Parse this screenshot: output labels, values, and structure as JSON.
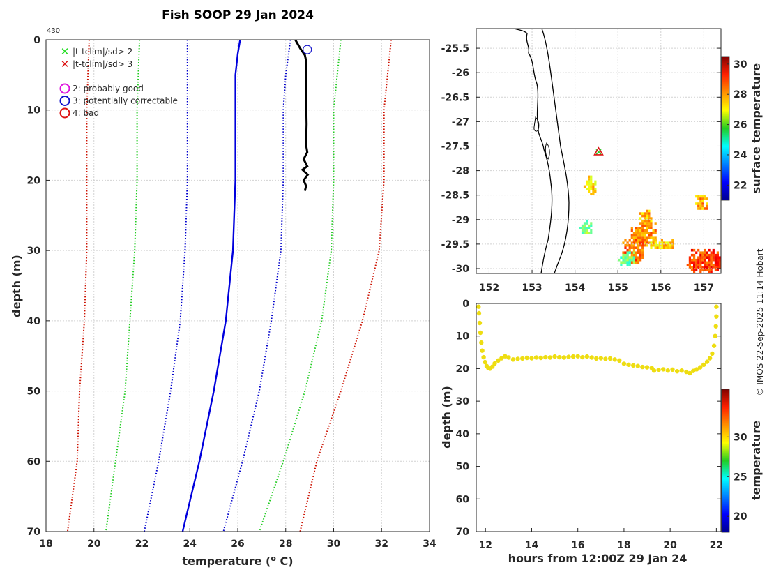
{
  "figure": {
    "title": "Fish SOOP 29 Jan 2024",
    "cruise_id": "430",
    "credit": "© IMOS 22-Sep-2025 11:14 Hobart"
  },
  "colors": {
    "climatology_mean": "#0000dd",
    "sd1": "#0000cc",
    "sd2": "#22cc22",
    "sd3": "#cc1100",
    "profile": "#000000",
    "marker": "#1a1acc"
  },
  "chart_data": [
    {
      "type": "line",
      "id": "profile",
      "title": "Fish SOOP 29 Jan 2024",
      "xlabel": "temperature (o C)",
      "xlabel_main": "temperature (",
      "xlabel_sup": "o",
      "xlabel_tail": " C)",
      "ylabel": "depth (m)",
      "xlim": [
        18,
        34
      ],
      "ylim": [
        70,
        0
      ],
      "xticks": [
        18,
        20,
        22,
        24,
        26,
        28,
        30,
        32,
        34
      ],
      "yticks": [
        0,
        10,
        20,
        30,
        40,
        50,
        60,
        70
      ],
      "grid": true,
      "legend": {
        "location": "top-left",
        "flag_entries": [
          {
            "symbol": "x",
            "color": "#22dd22",
            "label": "|t-tclim|/sd> 2"
          },
          {
            "symbol": "x",
            "color": "#dd1111",
            "label": "|t-tclim|/sd> 3"
          }
        ],
        "qc_entries": [
          {
            "symbol": "o",
            "color": "#dd11dd",
            "label": "2: probably good"
          },
          {
            "symbol": "o",
            "color": "#1111cc",
            "label": "3: potentially correctable"
          },
          {
            "symbol": "o",
            "color": "#dd1111",
            "label": "4: bad"
          }
        ]
      },
      "series": [
        {
          "name": "climatology mean",
          "style": "solid",
          "color": "#0000dd",
          "points": [
            [
              26.1,
              0
            ],
            [
              26.0,
              2
            ],
            [
              25.9,
              5
            ],
            [
              25.9,
              10
            ],
            [
              25.9,
              20
            ],
            [
              25.8,
              30
            ],
            [
              25.5,
              40
            ],
            [
              25.0,
              50
            ],
            [
              24.4,
              60
            ],
            [
              23.7,
              70
            ]
          ]
        },
        {
          "name": "-1 sd",
          "style": "dotted",
          "color": "#0000cc",
          "points": [
            [
              23.9,
              0
            ],
            [
              23.9,
              10
            ],
            [
              23.9,
              20
            ],
            [
              23.8,
              30
            ],
            [
              23.6,
              40
            ],
            [
              23.2,
              50
            ],
            [
              22.7,
              60
            ],
            [
              22.1,
              70
            ]
          ]
        },
        {
          "name": "+1 sd",
          "style": "dotted",
          "color": "#0000cc",
          "points": [
            [
              28.2,
              0
            ],
            [
              28.0,
              5
            ],
            [
              27.9,
              10
            ],
            [
              27.9,
              20
            ],
            [
              27.8,
              30
            ],
            [
              27.4,
              40
            ],
            [
              26.9,
              50
            ],
            [
              26.2,
              60
            ],
            [
              25.4,
              70
            ]
          ]
        },
        {
          "name": "-2 sd",
          "style": "dotted",
          "color": "#22cc22",
          "points": [
            [
              21.9,
              0
            ],
            [
              21.8,
              10
            ],
            [
              21.8,
              20
            ],
            [
              21.7,
              30
            ],
            [
              21.5,
              40
            ],
            [
              21.3,
              50
            ],
            [
              20.9,
              60
            ],
            [
              20.5,
              70
            ]
          ]
        },
        {
          "name": "+2 sd",
          "style": "dotted",
          "color": "#22cc22",
          "points": [
            [
              30.3,
              0
            ],
            [
              30.0,
              10
            ],
            [
              30.0,
              20
            ],
            [
              29.9,
              30
            ],
            [
              29.5,
              40
            ],
            [
              28.8,
              50
            ],
            [
              27.9,
              60
            ],
            [
              26.9,
              70
            ]
          ]
        },
        {
          "name": "-3 sd",
          "style": "dotted",
          "color": "#cc1100",
          "points": [
            [
              19.8,
              0
            ],
            [
              19.7,
              10
            ],
            [
              19.7,
              20
            ],
            [
              19.7,
              30
            ],
            [
              19.6,
              40
            ],
            [
              19.4,
              50
            ],
            [
              19.3,
              60
            ],
            [
              18.9,
              70
            ]
          ]
        },
        {
          "name": "+3 sd",
          "style": "dotted",
          "color": "#cc1100",
          "points": [
            [
              32.4,
              0
            ],
            [
              32.1,
              10
            ],
            [
              32.1,
              20
            ],
            [
              31.9,
              30
            ],
            [
              31.2,
              40
            ],
            [
              30.3,
              50
            ],
            [
              29.3,
              60
            ],
            [
              28.6,
              70
            ]
          ]
        },
        {
          "name": "observed profile",
          "style": "solid",
          "color": "#000000",
          "points": [
            [
              28.4,
              0
            ],
            [
              28.6,
              1.2
            ],
            [
              28.8,
              2.2
            ],
            [
              28.85,
              3
            ],
            [
              28.85,
              8
            ],
            [
              28.87,
              12
            ],
            [
              28.85,
              15
            ],
            [
              28.9,
              16
            ],
            [
              28.75,
              17
            ],
            [
              28.9,
              18
            ],
            [
              28.7,
              18.5
            ],
            [
              28.92,
              19.2
            ],
            [
              28.75,
              20
            ],
            [
              28.85,
              20.8
            ],
            [
              28.8,
              21.5
            ]
          ]
        }
      ],
      "qc_marker": {
        "x": 28.9,
        "y": 1.4,
        "flag": "3: potentially correctable"
      }
    },
    {
      "type": "heatmap",
      "id": "sst_map",
      "colorbar_label": "surface temperature",
      "colorbar_ticks": [
        22,
        24,
        26,
        28,
        30
      ],
      "colorbar_range": [
        21,
        30.5
      ],
      "xlim": [
        151.7,
        157.4
      ],
      "ylim": [
        -30.1,
        -25.1
      ],
      "xticks": [
        152,
        153,
        154,
        155,
        156,
        157
      ],
      "yticks": [
        -25.5,
        -26,
        -26.5,
        -27,
        -27.5,
        -28,
        -28.5,
        -29,
        -29.5,
        -30
      ],
      "ytick_labels": [
        "-25.5",
        "-26",
        "-26.5",
        "-27",
        "-27.5",
        "-28",
        "-28.5",
        "-29",
        "-29.5",
        "-30"
      ],
      "grid": true,
      "station": {
        "lon": 154.55,
        "lat": -27.62
      },
      "patches": [
        {
          "lon": [
            155.3,
            155.9
          ],
          "lat": [
            -29.05,
            -29.55
          ],
          "t": 28.0
        },
        {
          "lon": [
            155.1,
            155.6
          ],
          "lat": [
            -29.4,
            -29.9
          ],
          "t": 28.4
        },
        {
          "lon": [
            156.6,
            157.4
          ],
          "lat": [
            -29.6,
            -30.1
          ],
          "t": 28.8
        },
        {
          "lon": [
            154.1,
            154.4
          ],
          "lat": [
            -29.0,
            -29.3
          ],
          "t": 25.8
        },
        {
          "lon": [
            155.7,
            156.3
          ],
          "lat": [
            -29.4,
            -29.6
          ],
          "t": 27.3
        },
        {
          "lon": [
            155.0,
            155.4
          ],
          "lat": [
            -29.65,
            -29.95
          ],
          "t": 25.6
        },
        {
          "lon": [
            154.2,
            154.5
          ],
          "lat": [
            -28.1,
            -28.5
          ],
          "t": 27.2
        },
        {
          "lon": [
            155.5,
            155.8
          ],
          "lat": [
            -28.8,
            -29.1
          ],
          "t": 27.6
        },
        {
          "lon": [
            156.8,
            157.1
          ],
          "lat": [
            -28.5,
            -28.8
          ],
          "t": 27.8
        }
      ]
    },
    {
      "type": "scatter",
      "id": "depth_time",
      "xlabel": "hours from 12:00Z 29 Jan 24",
      "ylabel": "depth (m)",
      "xlim": [
        11.6,
        22.2
      ],
      "ylim": [
        70,
        0
      ],
      "xticks": [
        12,
        14,
        16,
        18,
        20,
        22
      ],
      "yticks": [
        0,
        10,
        20,
        30,
        40,
        50,
        60,
        70
      ],
      "colorbar_label": "temperature",
      "colorbar_ticks": [
        20,
        25,
        30
      ],
      "colorbar_range": [
        18,
        36
      ],
      "color": "#eedd11",
      "points": [
        [
          11.7,
          1.0
        ],
        [
          11.72,
          3.0
        ],
        [
          11.75,
          6.0
        ],
        [
          11.78,
          9.0
        ],
        [
          11.82,
          12.0
        ],
        [
          11.86,
          14.5
        ],
        [
          11.92,
          16.5
        ],
        [
          11.98,
          18.0
        ],
        [
          12.05,
          19.2
        ],
        [
          12.12,
          19.8
        ],
        [
          12.2,
          20.0
        ],
        [
          12.3,
          19.4
        ],
        [
          12.4,
          18.4
        ],
        [
          12.55,
          17.5
        ],
        [
          12.7,
          16.8
        ],
        [
          12.85,
          16.2
        ],
        [
          13.0,
          16.6
        ],
        [
          13.2,
          17.2
        ],
        [
          13.4,
          17.0
        ],
        [
          13.6,
          16.9
        ],
        [
          13.8,
          16.7
        ],
        [
          14.0,
          16.8
        ],
        [
          14.2,
          16.6
        ],
        [
          14.4,
          16.7
        ],
        [
          14.6,
          16.5
        ],
        [
          14.8,
          16.6
        ],
        [
          15.0,
          16.3
        ],
        [
          15.2,
          16.5
        ],
        [
          15.4,
          16.6
        ],
        [
          15.6,
          16.4
        ],
        [
          15.8,
          16.3
        ],
        [
          16.0,
          16.2
        ],
        [
          16.2,
          16.5
        ],
        [
          16.4,
          16.3
        ],
        [
          16.6,
          16.6
        ],
        [
          16.8,
          16.9
        ],
        [
          17.0,
          16.8
        ],
        [
          17.2,
          17.0
        ],
        [
          17.4,
          16.9
        ],
        [
          17.6,
          17.2
        ],
        [
          17.8,
          17.5
        ],
        [
          18.0,
          18.5
        ],
        [
          18.2,
          18.8
        ],
        [
          18.4,
          19.0
        ],
        [
          18.6,
          19.2
        ],
        [
          18.8,
          19.5
        ],
        [
          19.0,
          19.6
        ],
        [
          19.2,
          19.8
        ],
        [
          19.3,
          20.6
        ],
        [
          19.5,
          20.4
        ],
        [
          19.7,
          20.2
        ],
        [
          19.9,
          20.6
        ],
        [
          20.1,
          20.3
        ],
        [
          20.3,
          20.8
        ],
        [
          20.5,
          20.6
        ],
        [
          20.7,
          21.0
        ],
        [
          20.85,
          21.4
        ],
        [
          21.0,
          20.7
        ],
        [
          21.15,
          20.2
        ],
        [
          21.3,
          19.6
        ],
        [
          21.45,
          18.8
        ],
        [
          21.6,
          17.9
        ],
        [
          21.72,
          16.8
        ],
        [
          21.82,
          15.4
        ],
        [
          21.9,
          13.0
        ],
        [
          21.95,
          10.0
        ],
        [
          21.98,
          7.0
        ],
        [
          22.0,
          4.0
        ],
        [
          22.0,
          1.0
        ]
      ]
    }
  ]
}
